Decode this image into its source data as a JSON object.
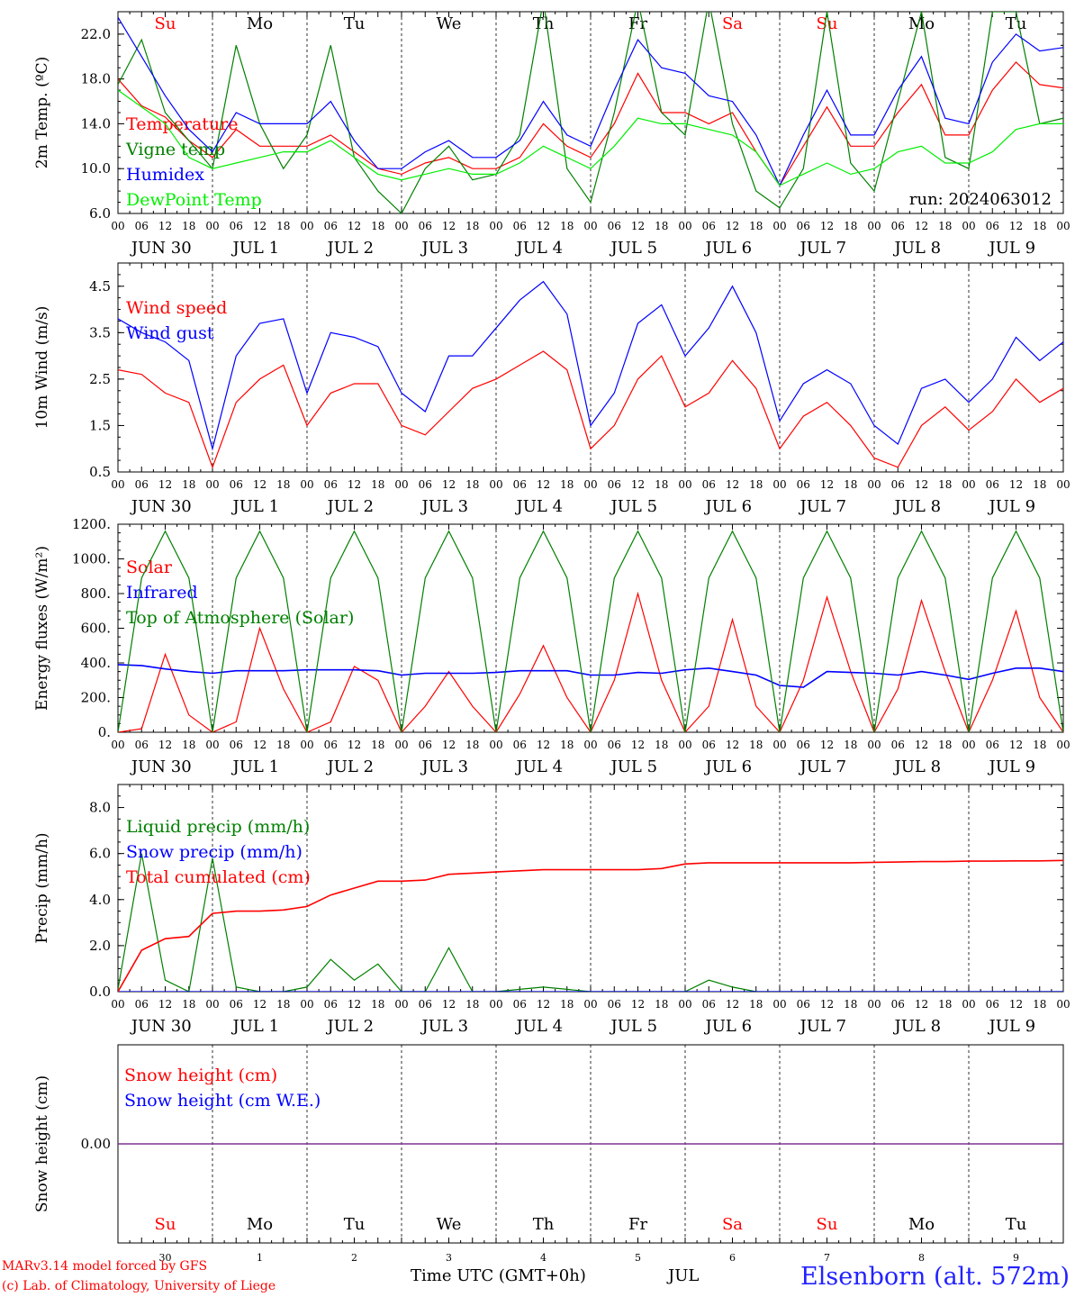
{
  "run_label": "run: 2024063012",
  "footer": {
    "model_line": "MARv3.14 model forced by GFS",
    "credit_line": "(c) Lab. of Climatology, University of Liege",
    "time_axis_label": "Time UTC (GMT+0h)",
    "month_label": "JUL",
    "station": "Elsenborn (alt. 572m)"
  },
  "days": {
    "weekday_labels": [
      "Su",
      "Mo",
      "Tu",
      "We",
      "Th",
      "Fr",
      "Sa",
      "Su",
      "Mo",
      "Tu"
    ],
    "weekday_colors": [
      "#ff0000",
      "#000000",
      "#000000",
      "#000000",
      "#000000",
      "#000000",
      "#ff0000",
      "#ff0000",
      "#000000",
      "#000000"
    ],
    "date_labels": [
      "JUN 30",
      "JUL  1",
      "JUL  2",
      "JUL  3",
      "JUL  4",
      "JUL  5",
      "JUL  6",
      "JUL  7",
      "JUL  8",
      "JUL  9"
    ],
    "day_numbers": [
      "30",
      "1",
      "2",
      "3",
      "4",
      "5",
      "6",
      "7",
      "8",
      "9"
    ],
    "hour_ticks": [
      "00",
      "06",
      "12",
      "18"
    ],
    "final_tick": "00"
  },
  "chart_data": [
    {
      "type": "line",
      "ylabel": "2m Temp. (ºC)",
      "ylim": [
        6.0,
        24.0
      ],
      "yticks": [
        "6.0",
        "10.0",
        "14.0",
        "18.0",
        "22.0"
      ],
      "x_unit": "hours since JUN 30 00 UTC",
      "x_step_hours": 6,
      "series": [
        {
          "name": "Temperature",
          "color": "#ff0000",
          "values": [
            18.0,
            15.6,
            14.6,
            12.5,
            11.0,
            13.5,
            12.0,
            12.0,
            12.0,
            13.0,
            11.5,
            10.0,
            9.5,
            10.5,
            11.0,
            10.0,
            10.0,
            11.0,
            14.0,
            12.0,
            11.0,
            14.0,
            18.5,
            15.0,
            15.0,
            14.0,
            15.0,
            11.5,
            8.5,
            12.0,
            15.5,
            12.0,
            12.0,
            15.0,
            17.5,
            13.0,
            13.0,
            17.0,
            19.5,
            17.5,
            17.2
          ]
        },
        {
          "name": "Vigne temp",
          "color": "#008000",
          "values": [
            17.5,
            21.5,
            15.0,
            12.5,
            10.0,
            21.0,
            14.0,
            10.0,
            13.0,
            21.0,
            11.0,
            8.0,
            6.0,
            10.0,
            12.0,
            9.0,
            9.5,
            13.0,
            25.0,
            10.0,
            7.0,
            15.0,
            25.0,
            15.0,
            13.0,
            25.0,
            14.0,
            8.0,
            6.5,
            10.0,
            24.0,
            10.5,
            8.0,
            16.0,
            24.0,
            11.0,
            10.0,
            24.0,
            24.0,
            14.0,
            14.5
          ]
        },
        {
          "name": "Humidex",
          "color": "#0000ff",
          "values": [
            23.5,
            20.0,
            16.5,
            13.5,
            11.5,
            15.0,
            14.0,
            14.0,
            14.0,
            16.0,
            12.5,
            10.0,
            10.0,
            11.5,
            12.5,
            11.0,
            11.0,
            12.5,
            16.0,
            13.0,
            12.0,
            17.0,
            21.5,
            19.0,
            18.5,
            16.5,
            16.0,
            13.0,
            8.5,
            13.0,
            17.0,
            13.0,
            13.0,
            17.0,
            20.0,
            14.5,
            14.0,
            19.5,
            22.0,
            20.5,
            20.8
          ]
        },
        {
          "name": "DewPoint Temp",
          "color": "#00ee00",
          "values": [
            17.0,
            15.5,
            14.0,
            11.0,
            10.0,
            10.5,
            11.0,
            11.5,
            11.5,
            12.5,
            11.0,
            9.5,
            9.0,
            9.5,
            10.0,
            9.5,
            9.5,
            10.5,
            12.0,
            11.0,
            10.0,
            12.0,
            14.5,
            14.0,
            14.0,
            13.5,
            13.0,
            11.5,
            8.5,
            9.5,
            10.5,
            9.5,
            10.0,
            11.5,
            12.0,
            10.5,
            10.5,
            11.5,
            13.5,
            14.0,
            14.0
          ]
        }
      ]
    },
    {
      "type": "line",
      "ylabel": "10m Wind (m/s)",
      "ylim": [
        0.5,
        5.0
      ],
      "yticks": [
        "0.5",
        "1.5",
        "2.5",
        "3.5",
        "4.5"
      ],
      "x_unit": "hours since JUN 30 00 UTC",
      "x_step_hours": 6,
      "series": [
        {
          "name": "Wind speed",
          "color": "#ff0000",
          "values": [
            2.7,
            2.6,
            2.2,
            2.0,
            0.6,
            2.0,
            2.5,
            2.8,
            1.5,
            2.2,
            2.4,
            2.4,
            1.5,
            1.3,
            1.8,
            2.3,
            2.5,
            2.8,
            3.1,
            2.7,
            1.0,
            1.5,
            2.5,
            3.0,
            1.9,
            2.2,
            2.9,
            2.3,
            1.0,
            1.7,
            2.0,
            1.5,
            0.8,
            0.6,
            1.5,
            1.9,
            1.4,
            1.8,
            2.5,
            2.0,
            2.3
          ]
        },
        {
          "name": "Wind gust",
          "color": "#0000ff",
          "values": [
            3.8,
            3.5,
            3.3,
            2.9,
            1.0,
            3.0,
            3.7,
            3.8,
            2.2,
            3.5,
            3.4,
            3.2,
            2.2,
            1.8,
            3.0,
            3.0,
            3.6,
            4.2,
            4.6,
            3.9,
            1.5,
            2.2,
            3.7,
            4.1,
            3.0,
            3.6,
            4.5,
            3.5,
            1.6,
            2.4,
            2.7,
            2.4,
            1.5,
            1.1,
            2.3,
            2.5,
            2.0,
            2.5,
            3.4,
            2.9,
            3.3
          ]
        }
      ]
    },
    {
      "type": "line",
      "ylabel": "Energy fluxes (W/m²)",
      "ylim": [
        0,
        1200
      ],
      "yticks": [
        "0.",
        "200.",
        "400.",
        "600.",
        "800.",
        "1000.",
        "1200."
      ],
      "x_unit": "hours since JUN 30 00 UTC",
      "x_step_hours": 6,
      "series": [
        {
          "name": "Solar",
          "color": "#ff0000",
          "values": [
            0,
            20,
            450,
            100,
            0,
            60,
            600,
            250,
            0,
            60,
            380,
            300,
            0,
            150,
            350,
            150,
            0,
            220,
            500,
            200,
            0,
            300,
            800,
            300,
            0,
            150,
            650,
            150,
            0,
            300,
            780,
            350,
            0,
            250,
            760,
            350,
            0,
            300,
            700,
            200,
            0
          ]
        },
        {
          "name": "Infrared",
          "color": "#0000ff",
          "values": [
            390,
            385,
            365,
            350,
            340,
            355,
            355,
            355,
            360,
            360,
            360,
            355,
            330,
            340,
            340,
            340,
            345,
            355,
            355,
            355,
            330,
            330,
            345,
            340,
            360,
            370,
            350,
            330,
            270,
            260,
            350,
            345,
            340,
            330,
            350,
            330,
            305,
            340,
            370,
            370,
            350
          ]
        },
        {
          "name": "Top of Atmosphere (Solar)",
          "color": "#008000",
          "values": [
            0,
            890,
            1160,
            890,
            0,
            890,
            1160,
            890,
            0,
            890,
            1160,
            890,
            0,
            890,
            1160,
            890,
            0,
            890,
            1160,
            890,
            0,
            890,
            1160,
            890,
            0,
            890,
            1160,
            890,
            0,
            890,
            1160,
            890,
            0,
            890,
            1160,
            890,
            0,
            890,
            1160,
            890,
            0
          ]
        }
      ]
    },
    {
      "type": "line",
      "ylabel": "Precip (mm/h)",
      "ylim": [
        0,
        9.0
      ],
      "yticks": [
        "0.0",
        "2.0",
        "4.0",
        "6.0",
        "8.0"
      ],
      "x_unit": "hours since JUN 30 00 UTC",
      "x_step_hours": 6,
      "series": [
        {
          "name": "Liquid precip (mm/h)",
          "color": "#008000",
          "values": [
            0.1,
            6.0,
            0.5,
            0.0,
            5.8,
            0.2,
            0.0,
            0.0,
            0.2,
            1.4,
            0.5,
            1.2,
            0.0,
            0.0,
            1.9,
            0.0,
            0.0,
            0.1,
            0.2,
            0.1,
            0.0,
            0.0,
            0.0,
            0.0,
            0.0,
            0.5,
            0.2,
            0.0,
            0.0,
            0.0,
            0.0,
            0.0,
            0.0,
            0.0,
            0.0,
            0.0,
            0.0,
            0.0,
            0.0,
            0.0,
            0.0
          ]
        },
        {
          "name": "Snow precip (mm/h)",
          "color": "#0000ff",
          "values": [
            0,
            0,
            0,
            0,
            0,
            0,
            0,
            0,
            0,
            0,
            0,
            0,
            0,
            0,
            0,
            0,
            0,
            0,
            0,
            0,
            0,
            0,
            0,
            0,
            0,
            0,
            0,
            0,
            0,
            0,
            0,
            0,
            0,
            0,
            0,
            0,
            0,
            0,
            0,
            0,
            0
          ]
        },
        {
          "name": "Total cumulated (cm)",
          "color": "#ff0000",
          "values": [
            0.0,
            1.8,
            2.3,
            2.4,
            3.4,
            3.5,
            3.5,
            3.55,
            3.7,
            4.2,
            4.5,
            4.8,
            4.8,
            4.85,
            5.1,
            5.15,
            5.2,
            5.25,
            5.3,
            5.3,
            5.3,
            5.3,
            5.3,
            5.35,
            5.55,
            5.6,
            5.6,
            5.6,
            5.6,
            5.6,
            5.6,
            5.6,
            5.62,
            5.63,
            5.65,
            5.65,
            5.67,
            5.67,
            5.68,
            5.68,
            5.7
          ]
        }
      ]
    },
    {
      "type": "line",
      "ylabel": "Snow height (cm)",
      "yticks": [
        "0.00"
      ],
      "x_unit": "hours since JUN 30 00 UTC",
      "x_step_hours": 6,
      "series": [
        {
          "name": "Snow height (cm)",
          "color": "#ff0000",
          "values": [
            0,
            0
          ]
        },
        {
          "name": "Snow height (cm W.E.)",
          "color": "#0000ff",
          "values": [
            0,
            0
          ]
        }
      ]
    }
  ]
}
